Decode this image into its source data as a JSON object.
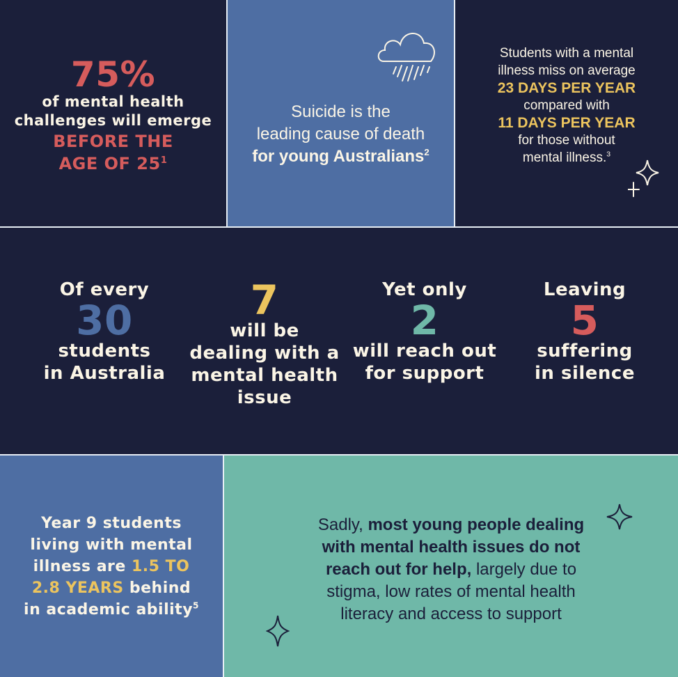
{
  "colors": {
    "navy": "#1b1f3a",
    "blue": "#4e6ea3",
    "teal": "#6fb8a8",
    "red": "#d65c5c",
    "yellow": "#ecc45e",
    "cream": "#fbf5e6"
  },
  "panel1": {
    "stat": "75%",
    "line1": "of mental health",
    "line2": "challenges will emerge",
    "hl1": "BEFORE THE",
    "hl2": "AGE OF 25",
    "sup": "1"
  },
  "panel2": {
    "icon": "rain-cloud-icon",
    "line1": "Suicide is the",
    "line2": "leading cause of death",
    "bold": "for young Australians",
    "sup": "2"
  },
  "panel3": {
    "line1": "Students with a mental",
    "line2": "illness miss on average",
    "hl1": "23 DAYS PER YEAR",
    "line3": "compared with",
    "hl2": "11 DAYS PER YEAR",
    "line4": "for those without",
    "line5": "mental illness.",
    "sup": "3"
  },
  "stats": [
    {
      "pre": "Of every",
      "num": "30",
      "post1": "students",
      "post2": "in Australia"
    },
    {
      "num": "7",
      "post1": "will be",
      "post2": "dealing with a",
      "post3": "mental health",
      "post4": "issue"
    },
    {
      "pre": "Yet only",
      "num": "2",
      "post1": "will reach out",
      "post2": "for support"
    },
    {
      "pre": "Leaving",
      "num": "5",
      "post1": "suffering",
      "post2": "in silence"
    }
  ],
  "panel4": {
    "line1": "Year 9 students",
    "line2": "living with mental",
    "line3a": "illness are ",
    "hl1": "1.5 TO",
    "hl2": "2.8 YEARS",
    "line4b": " behind",
    "line5": "in academic ability",
    "sup": "5"
  },
  "panel5": {
    "pre": "Sadly, ",
    "bold1": "most young people dealing",
    "bold2": "with mental health issues do not",
    "bold3": "reach out for help,",
    "rest1": " largely due to",
    "rest2": "stigma, low rates of mental health",
    "rest3": "literacy and access to support"
  }
}
